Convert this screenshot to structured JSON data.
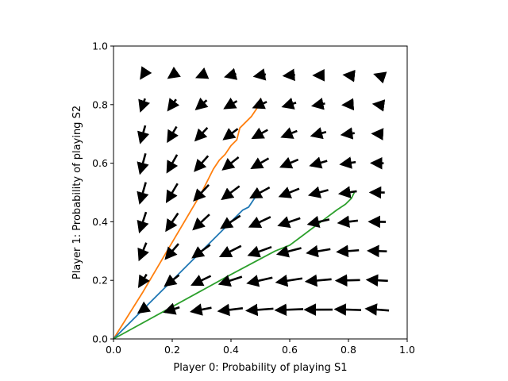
{
  "chart_data": {
    "type": "quiver",
    "title": "",
    "xlabel": "Player 0: Probability of playing S1",
    "ylabel": "Player 1: Probability of playing S2",
    "xlim": [
      0.0,
      1.0
    ],
    "ylim": [
      0.0,
      1.0
    ],
    "xticks": [
      "0.0",
      "0.2",
      "0.4",
      "0.6",
      "0.8",
      "1.0"
    ],
    "yticks": [
      "0.0",
      "0.2",
      "0.4",
      "0.6",
      "0.8",
      "1.0"
    ],
    "grid": false,
    "legend": "none",
    "vector_field": {
      "color": "#000000",
      "x": [
        0.1,
        0.2,
        0.3,
        0.4,
        0.5,
        0.6,
        0.7,
        0.8,
        0.9
      ],
      "y": [
        0.1,
        0.2,
        0.3,
        0.4,
        0.5,
        0.6,
        0.7,
        0.8,
        0.9
      ],
      "note_units": "vectors are [dx, dy] per grid point, row-major by y then x"
    },
    "series": [
      {
        "color": "#ff7f0e",
        "x": [
          0.0,
          0.1,
          0.2,
          0.3,
          0.32,
          0.34,
          0.36,
          0.38,
          0.4,
          0.42,
          0.43,
          0.45,
          0.47,
          0.49,
          0.5
        ],
        "y": [
          0.0,
          0.16,
          0.33,
          0.5,
          0.54,
          0.58,
          0.61,
          0.63,
          0.66,
          0.68,
          0.72,
          0.74,
          0.76,
          0.79,
          0.82
        ]
      },
      {
        "color": "#1f77b4",
        "x": [
          0.0,
          0.1,
          0.2,
          0.3,
          0.35,
          0.4,
          0.44,
          0.46,
          0.48,
          0.5
        ],
        "y": [
          0.0,
          0.1,
          0.2,
          0.3,
          0.35,
          0.4,
          0.44,
          0.45,
          0.48,
          0.5
        ]
      },
      {
        "color": "#2ca02c",
        "x": [
          0.0,
          0.2,
          0.4,
          0.55,
          0.6,
          0.64,
          0.68,
          0.72,
          0.76,
          0.79,
          0.81,
          0.82
        ],
        "y": [
          0.0,
          0.11,
          0.22,
          0.3,
          0.32,
          0.35,
          0.38,
          0.41,
          0.44,
          0.46,
          0.48,
          0.5
        ]
      }
    ]
  }
}
